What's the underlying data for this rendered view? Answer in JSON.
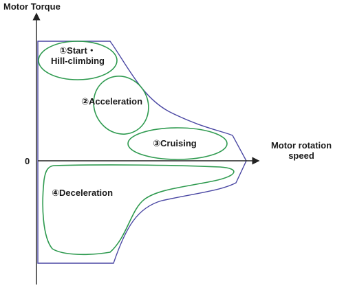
{
  "axes": {
    "y_label": "Motor Torque",
    "x_label_line1": "Motor rotation",
    "x_label_line2": "speed",
    "origin_label": "0"
  },
  "regions": {
    "start_line1": "①Start・",
    "start_line2": "Hill-climbing",
    "acceleration": "②Acceleration",
    "cruising": "③Cruising",
    "deceleration": "④Deceleration"
  },
  "colors": {
    "axis": "#222222",
    "envelope": "#4a47a3",
    "region": "#2e9a4f",
    "text": "#1a1a1a"
  }
}
